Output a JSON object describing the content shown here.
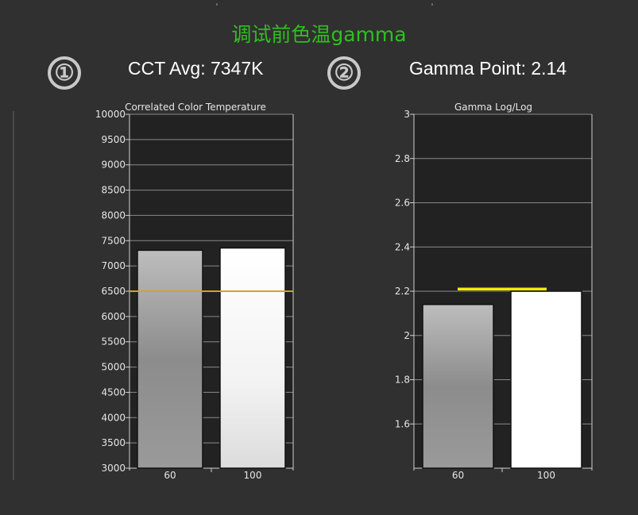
{
  "page": {
    "title": "调试前色温gamma",
    "marker_1": "①",
    "marker_2": "②",
    "heading_1": "CCT Avg: 7347K",
    "heading_2": "Gamma Point: 2.14"
  },
  "colors": {
    "background": "#303030",
    "plot_background": "#222222",
    "title_green": "#2fbf1f",
    "cct_reference": "#d8a024",
    "gamma_reference": "#f2ee00"
  },
  "chart_data": [
    {
      "type": "bar",
      "title": "Correlated Color Temperature",
      "categories": [
        "60",
        "100"
      ],
      "values": [
        7310,
        7355
      ],
      "bar_fills": [
        "gray-gradient",
        "white-gradient"
      ],
      "reference_line": {
        "value": 6500,
        "span": "full",
        "color": "#d8a024"
      },
      "ylim": [
        3000,
        10000
      ],
      "yticks": [
        3000,
        3500,
        4000,
        4500,
        5000,
        5500,
        6000,
        6500,
        7000,
        7500,
        8000,
        8500,
        9000,
        9500,
        10000
      ],
      "ytick_labels": [
        "3000",
        "3500",
        "4000",
        "4500",
        "5000",
        "5500",
        "6000",
        "6500",
        "7000",
        "7500",
        "8000",
        "8500",
        "9000",
        "9500",
        "10000"
      ],
      "grid": true,
      "legend": "none"
    },
    {
      "type": "bar",
      "title": "Gamma Log/Log",
      "categories": [
        "60",
        "100"
      ],
      "values": [
        2.14,
        2.2
      ],
      "bar_fills": [
        "gray-gradient",
        "white"
      ],
      "reference_line": {
        "value": 2.21,
        "span": "partial",
        "color": "#f2ee00"
      },
      "ylim": [
        1.4,
        3.0
      ],
      "yticks": [
        1.6,
        1.8,
        2.0,
        2.2,
        2.4,
        2.6,
        2.8,
        3.0
      ],
      "ytick_labels": [
        "1.6",
        "1.8",
        "2",
        "2.2",
        "2.4",
        "2.6",
        "2.8",
        "3"
      ],
      "grid": true,
      "legend": "none"
    }
  ]
}
